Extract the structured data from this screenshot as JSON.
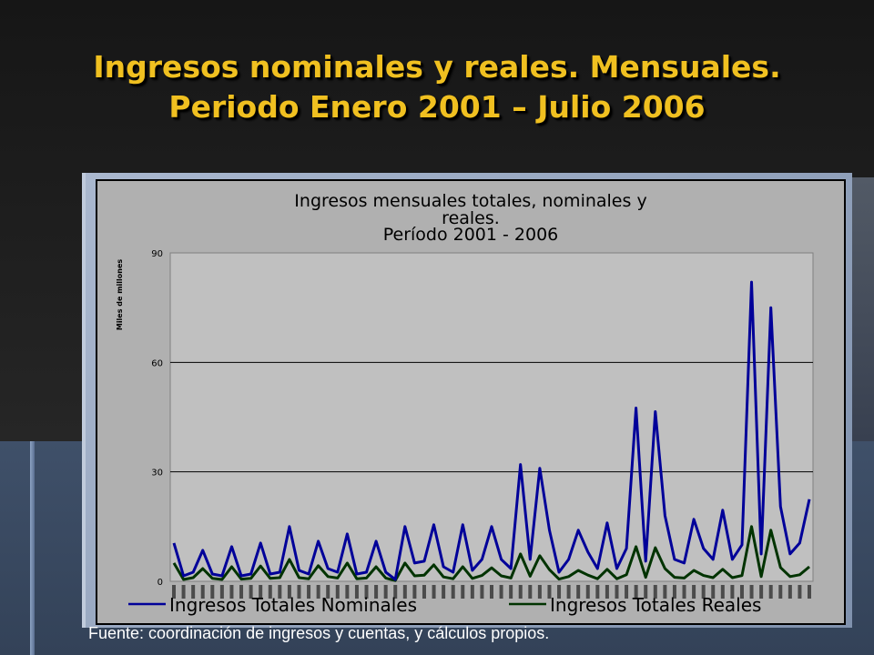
{
  "slide": {
    "title_line1": "Ingresos nominales y reales. Mensuales.",
    "title_line2": "Periodo Enero 2001 – Julio 2006",
    "source": "Fuente: coordinación de ingresos y cuentas, y cálculos propios."
  },
  "chart_data": {
    "type": "line",
    "title_lines": [
      "Ingresos mensuales totales, nominales y",
      "reales.",
      "Período 2001 - 2006"
    ],
    "ylabel": "Miles de millones",
    "ylim": [
      0,
      90
    ],
    "yticks": [
      0,
      30,
      60,
      90
    ],
    "x_tick_count": 67,
    "grid": true,
    "legend_position": "bottom",
    "series": [
      {
        "name": "Ingresos Totales Nominales",
        "color": "#000099",
        "values": [
          10.5,
          1.5,
          2.5,
          8.5,
          2.0,
          1.5,
          9.5,
          1.5,
          2.0,
          10.5,
          2.0,
          2.5,
          15.0,
          3.0,
          2.0,
          11.0,
          3.5,
          2.5,
          13.0,
          2.0,
          2.5,
          11.0,
          2.5,
          0.5,
          15.0,
          5.0,
          5.5,
          15.5,
          4.0,
          2.5,
          15.5,
          3.0,
          6.0,
          15.0,
          6.0,
          3.5,
          32.0,
          6.0,
          31.0,
          14.0,
          2.5,
          6.0,
          14.0,
          8.0,
          3.5,
          16.0,
          3.5,
          9.0,
          47.5,
          5.5,
          46.5,
          18.0,
          6.0,
          5.0,
          17.0,
          9.0,
          6.0,
          19.5,
          6.0,
          10.0,
          82.0,
          7.5,
          75.0,
          20.5,
          7.5,
          10.5,
          22.5
        ]
      },
      {
        "name": "Ingresos Totales Reales",
        "color": "#003300",
        "values": [
          5.0,
          0.5,
          1.0,
          3.5,
          0.8,
          0.5,
          4.0,
          0.6,
          0.8,
          4.2,
          0.8,
          1.0,
          6.0,
          1.0,
          0.7,
          4.3,
          1.3,
          0.9,
          5.0,
          0.7,
          0.9,
          4.0,
          0.9,
          0.2,
          5.0,
          1.5,
          1.7,
          4.5,
          1.2,
          0.7,
          4.0,
          0.8,
          1.6,
          3.7,
          1.5,
          0.9,
          7.5,
          1.4,
          7.0,
          3.2,
          0.6,
          1.3,
          3.0,
          1.7,
          0.7,
          3.3,
          0.7,
          1.8,
          9.5,
          1.1,
          9.2,
          3.5,
          1.1,
          0.9,
          3.0,
          1.6,
          1.0,
          3.3,
          1.0,
          1.6,
          15.0,
          1.3,
          14.0,
          3.8,
          1.3,
          1.8,
          4.0
        ]
      }
    ]
  }
}
